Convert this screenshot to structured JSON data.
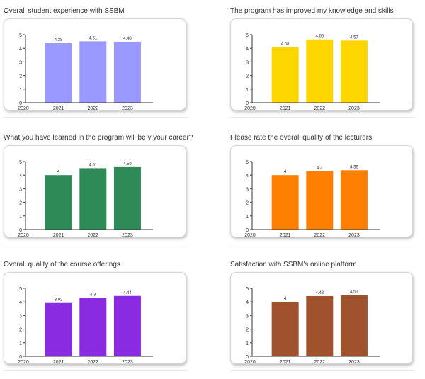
{
  "chart_data": [
    {
      "type": "bar",
      "title": "Overall student experience with SSBM",
      "categories": [
        "2021",
        "2022",
        "2023"
      ],
      "values": [
        4.38,
        4.51,
        4.48
      ],
      "value_labels": [
        "4.38",
        "4.51",
        "4.48"
      ],
      "x_axis_start_label": "2020",
      "y_ticks": [
        "0",
        "1",
        "2",
        "3",
        "4",
        "5"
      ],
      "ylim": [
        0,
        5
      ],
      "color": "#9999ff"
    },
    {
      "type": "bar",
      "title": "The program has improved my knowledge and skills",
      "categories": [
        "2021",
        "2022",
        "2023"
      ],
      "values": [
        4.08,
        4.65,
        4.57
      ],
      "value_labels": [
        "4.08",
        "4.65",
        "4.57"
      ],
      "x_axis_start_label": "2020",
      "y_ticks": [
        "0",
        "1",
        "2",
        "3",
        "4",
        "5"
      ],
      "ylim": [
        0,
        5
      ],
      "color": "#ffd700"
    },
    {
      "type": "bar",
      "title": "What you have learned in the program will be v your career?",
      "categories": [
        "2021",
        "2022",
        "2023"
      ],
      "values": [
        4,
        4.51,
        4.59
      ],
      "value_labels": [
        "4",
        "4.51",
        "4.59"
      ],
      "x_axis_start_label": "2020",
      "y_ticks": [
        "0",
        "1",
        "2",
        "3",
        "4",
        "5"
      ],
      "ylim": [
        0,
        5
      ],
      "color": "#2e8b57"
    },
    {
      "type": "bar",
      "title": "Please rate the overall quality of the lecturers",
      "categories": [
        "2021",
        "2022",
        "2023"
      ],
      "values": [
        4,
        4.3,
        4.36
      ],
      "value_labels": [
        "4",
        "4.3",
        "4.36"
      ],
      "x_axis_start_label": "2020",
      "y_ticks": [
        "0",
        "1",
        "2",
        "3",
        "4",
        "5"
      ],
      "ylim": [
        0,
        5
      ],
      "color": "#ff7f00"
    },
    {
      "type": "bar",
      "title": "Overall quality of the course offerings",
      "categories": [
        "2021",
        "2022",
        "2023"
      ],
      "values": [
        3.92,
        4.3,
        4.44
      ],
      "value_labels": [
        "3.92",
        "4.3",
        "4.44"
      ],
      "x_axis_start_label": "2020",
      "y_ticks": [
        "0",
        "1",
        "2",
        "3",
        "4",
        "5"
      ],
      "ylim": [
        0,
        5
      ],
      "color": "#8a2be2"
    },
    {
      "type": "bar",
      "title": "Satisfaction with SSBM's online platform",
      "categories": [
        "2021",
        "2022",
        "2023"
      ],
      "values": [
        4,
        4.43,
        4.51
      ],
      "value_labels": [
        "4",
        "4.43",
        "4.51"
      ],
      "x_axis_start_label": "2020",
      "y_ticks": [
        "0",
        "1",
        "2",
        "3",
        "4",
        "5"
      ],
      "ylim": [
        0,
        5
      ],
      "color": "#a0522d"
    }
  ]
}
